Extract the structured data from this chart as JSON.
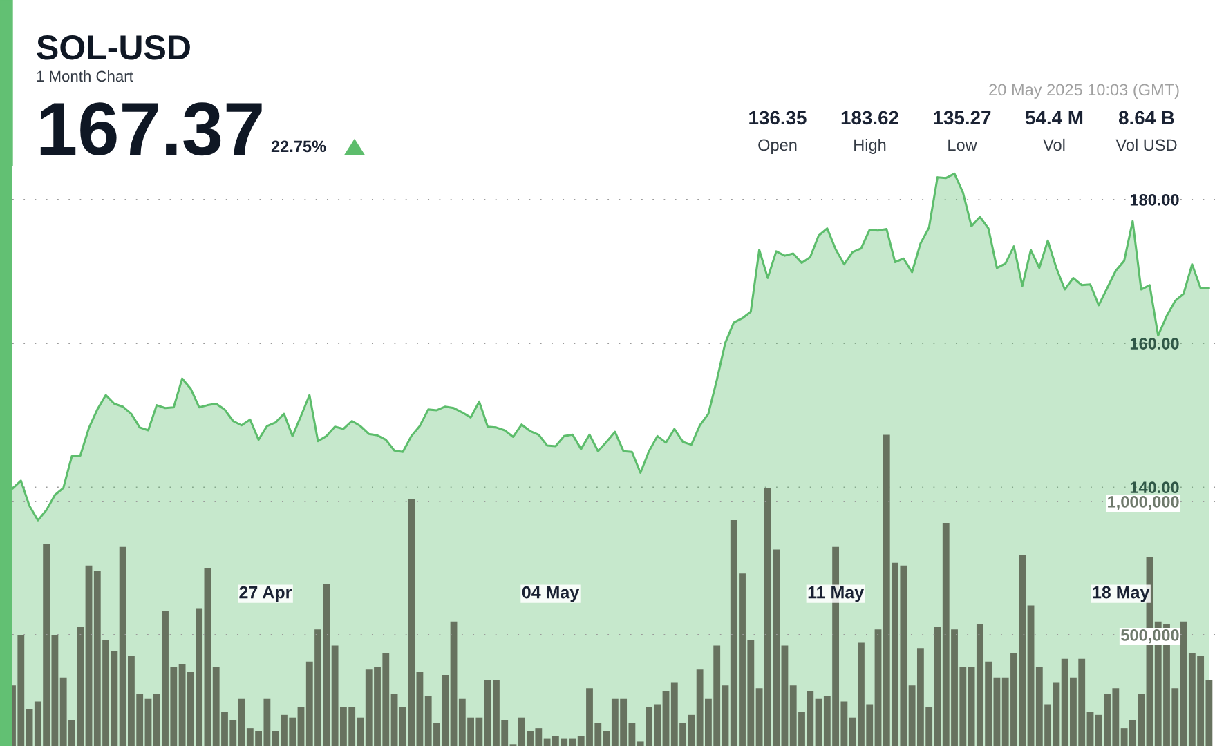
{
  "chart_data": {
    "type": "area",
    "title": "SOL-USD",
    "subtitle": "1 Month Chart",
    "annotations": [
      "167.37",
      "22.75%",
      "20 May 2025 10:03 (GMT)",
      "136.35",
      "Open",
      "183.62",
      "High",
      "135.27",
      "Low",
      "54.4 M",
      "Vol",
      "8.64 B",
      "Vol USD"
    ],
    "x": [
      "2025-04-20T19:00",
      "2025-04-21T00:00",
      "2025-04-21T05:00",
      "2025-04-21T10:00",
      "2025-04-21T15:00",
      "2025-04-21T20:00",
      "2025-04-22T01:00",
      "2025-04-22T06:00",
      "2025-04-22T11:00",
      "2025-04-22T16:00",
      "2025-04-22T21:00",
      "2025-04-23T02:00",
      "2025-04-23T07:00",
      "2025-04-23T12:00",
      "2025-04-23T17:00",
      "2025-04-23T22:00",
      "2025-04-24T03:00",
      "2025-04-24T08:00",
      "2025-04-24T13:00",
      "2025-04-24T18:00",
      "2025-04-24T23:00",
      "2025-04-25T04:00",
      "2025-04-25T09:00",
      "2025-04-25T14:00",
      "2025-04-25T19:00",
      "2025-04-26T00:00",
      "2025-04-26T05:00",
      "2025-04-26T10:00",
      "2025-04-26T15:00",
      "2025-04-26T20:00",
      "2025-04-27T01:00",
      "2025-04-27T06:00",
      "2025-04-27T11:00",
      "2025-04-27T16:00",
      "2025-04-27T21:00",
      "2025-04-28T02:00",
      "2025-04-28T07:00",
      "2025-04-28T12:00",
      "2025-04-28T17:00",
      "2025-04-28T22:00",
      "2025-04-29T03:00",
      "2025-04-29T08:00",
      "2025-04-29T13:00",
      "2025-04-29T18:00",
      "2025-04-29T23:00",
      "2025-04-30T04:00",
      "2025-04-30T09:00",
      "2025-04-30T14:00",
      "2025-04-30T19:00",
      "2025-05-01T00:00",
      "2025-05-01T05:00",
      "2025-05-01T10:00",
      "2025-05-01T15:00",
      "2025-05-01T20:00",
      "2025-05-02T01:00",
      "2025-05-02T06:00",
      "2025-05-02T11:00",
      "2025-05-02T16:00",
      "2025-05-02T21:00",
      "2025-05-03T02:00",
      "2025-05-03T07:00",
      "2025-05-03T12:00",
      "2025-05-03T17:00",
      "2025-05-03T22:00",
      "2025-05-04T03:00",
      "2025-05-04T08:00",
      "2025-05-04T13:00",
      "2025-05-04T18:00",
      "2025-05-04T23:00",
      "2025-05-05T04:00",
      "2025-05-05T09:00",
      "2025-05-05T14:00",
      "2025-05-05T19:00",
      "2025-05-06T00:00",
      "2025-05-06T05:00",
      "2025-05-06T10:00",
      "2025-05-06T15:00",
      "2025-05-06T20:00",
      "2025-05-07T01:00",
      "2025-05-07T06:00",
      "2025-05-07T11:00",
      "2025-05-07T16:00",
      "2025-05-07T21:00",
      "2025-05-08T02:00",
      "2025-05-08T07:00",
      "2025-05-08T12:00",
      "2025-05-08T17:00",
      "2025-05-08T22:00",
      "2025-05-09T03:00",
      "2025-05-09T08:00",
      "2025-05-09T13:00",
      "2025-05-09T18:00",
      "2025-05-09T23:00",
      "2025-05-10T04:00",
      "2025-05-10T09:00",
      "2025-05-10T14:00",
      "2025-05-10T19:00",
      "2025-05-11T00:00",
      "2025-05-11T05:00",
      "2025-05-11T10:00",
      "2025-05-11T15:00",
      "2025-05-11T20:00",
      "2025-05-12T01:00",
      "2025-05-12T06:00",
      "2025-05-12T11:00",
      "2025-05-12T16:00",
      "2025-05-12T21:00",
      "2025-05-13T02:00",
      "2025-05-13T07:00",
      "2025-05-13T12:00",
      "2025-05-13T17:00",
      "2025-05-13T22:00",
      "2025-05-14T03:00",
      "2025-05-14T08:00",
      "2025-05-14T13:00",
      "2025-05-14T18:00",
      "2025-05-14T23:00",
      "2025-05-15T04:00",
      "2025-05-15T09:00",
      "2025-05-15T14:00",
      "2025-05-15T19:00",
      "2025-05-16T00:00",
      "2025-05-16T05:00",
      "2025-05-16T10:00",
      "2025-05-16T15:00",
      "2025-05-16T20:00",
      "2025-05-17T01:00",
      "2025-05-17T06:00",
      "2025-05-17T11:00",
      "2025-05-17T16:00",
      "2025-05-17T21:00",
      "2025-05-18T02:00",
      "2025-05-18T07:00",
      "2025-05-18T12:00",
      "2025-05-18T17:00",
      "2025-05-18T22:00",
      "2025-05-19T03:00",
      "2025-05-19T08:00",
      "2025-05-19T13:00",
      "2025-05-19T18:00",
      "2025-05-19T23:00",
      "2025-05-20T04:00"
    ],
    "series": [
      {
        "color": "#5dbd6c",
        "values": [
          139.8,
          140.9,
          137.4,
          135.4,
          136.8,
          138.9,
          139.9,
          144.3,
          144.4,
          148.2,
          150.8,
          152.8,
          151.6,
          151.2,
          150.2,
          148.3,
          147.9,
          151.4,
          151.0,
          151.1,
          155.1,
          153.7,
          151.1,
          151.4,
          151.6,
          150.8,
          149.2,
          148.6,
          149.4,
          146.6,
          148.5,
          149.0,
          150.2,
          147.1,
          149.9,
          152.8,
          146.4,
          147.1,
          148.4,
          148.1,
          149.2,
          148.5,
          147.4,
          147.2,
          146.6,
          145.1,
          144.9,
          147.1,
          148.5,
          150.8,
          150.7,
          151.2,
          151.0,
          150.4,
          149.7,
          151.9,
          148.4,
          148.3,
          147.9,
          147.0,
          148.7,
          147.8,
          147.3,
          145.8,
          145.7,
          147.1,
          147.3,
          145.3,
          147.3,
          145.0,
          146.3,
          147.7,
          145.0,
          144.9,
          142.0,
          145.0,
          147.1,
          146.2,
          148.1,
          146.3,
          145.9,
          148.6,
          150.2,
          154.9,
          160.1,
          162.9,
          163.5,
          164.4,
          173.0,
          169.1,
          172.8,
          172.2,
          172.5,
          171.2,
          172.0,
          175.0,
          176.0,
          173.1,
          171.0,
          172.7,
          173.2,
          175.8,
          175.7,
          175.9,
          171.3,
          171.8,
          169.9,
          173.9,
          176.1,
          183.1,
          183.0,
          183.6,
          181.0,
          176.3,
          177.6,
          176.0,
          170.5,
          171.1,
          173.5,
          168.0,
          173.0,
          170.5,
          174.3,
          170.5,
          167.5,
          169.1,
          168.1,
          168.2,
          165.3,
          167.7,
          170.1,
          171.5,
          177.0,
          167.5,
          168.1,
          161.1,
          163.8,
          165.9,
          166.9,
          171.0,
          167.7,
          167.7
        ]
      },
      {
        "type": "bar",
        "axis": "y2",
        "color": "#67725f",
        "values": [
          310000,
          500000,
          220000,
          250000,
          840000,
          500000,
          340000,
          180000,
          530000,
          760000,
          740000,
          480000,
          440000,
          830000,
          420000,
          280000,
          260000,
          280000,
          590000,
          380000,
          390000,
          360000,
          600000,
          750000,
          380000,
          210000,
          180000,
          260000,
          150000,
          140000,
          260000,
          140000,
          200000,
          190000,
          230000,
          400000,
          520000,
          690000,
          460000,
          230000,
          230000,
          190000,
          370000,
          380000,
          430000,
          280000,
          230000,
          1010000,
          360000,
          270000,
          170000,
          350000,
          550000,
          260000,
          190000,
          190000,
          330000,
          330000,
          180000,
          90000,
          190000,
          140000,
          150000,
          110000,
          120000,
          110000,
          110000,
          120000,
          300000,
          170000,
          140000,
          260000,
          260000,
          170000,
          100000,
          230000,
          240000,
          290000,
          320000,
          170000,
          200000,
          370000,
          260000,
          460000,
          310000,
          930000,
          730000,
          480000,
          300000,
          1050000,
          820000,
          460000,
          310000,
          210000,
          290000,
          260000,
          270000,
          830000,
          250000,
          190000,
          470000,
          240000,
          520000,
          1250000,
          770000,
          760000,
          310000,
          450000,
          230000,
          530000,
          920000,
          520000,
          380000,
          380000,
          540000,
          400000,
          340000,
          340000,
          430000,
          800000,
          610000,
          380000,
          240000,
          320000,
          410000,
          340000,
          410000,
          210000,
          200000,
          280000,
          300000,
          150000,
          180000,
          280000,
          790000,
          550000,
          540000,
          300000,
          550000,
          430000,
          420000,
          330000
        ]
      }
    ],
    "xlim": [
      "2025-04-20T19:00",
      "2025-05-20T07:30"
    ],
    "xticks": [
      {
        "value": "2025-04-27",
        "label": "27 Apr"
      },
      {
        "value": "2025-05-04",
        "label": "04 May"
      },
      {
        "value": "2025-05-11",
        "label": "11 May"
      },
      {
        "value": "2025-05-18",
        "label": "18 May"
      }
    ],
    "ylim": [
      104,
      184.7
    ],
    "yticks": [
      {
        "value": 140,
        "label": "140.00"
      },
      {
        "value": 160,
        "label": "160.00"
      },
      {
        "value": 180,
        "label": "180.00"
      }
    ],
    "y2lim": [
      83000,
      2259000
    ],
    "y2ticks": [
      {
        "value": 500000,
        "label": "500,000"
      },
      {
        "value": 1000000,
        "label": "1,000,000"
      }
    ],
    "grid": "y"
  }
}
